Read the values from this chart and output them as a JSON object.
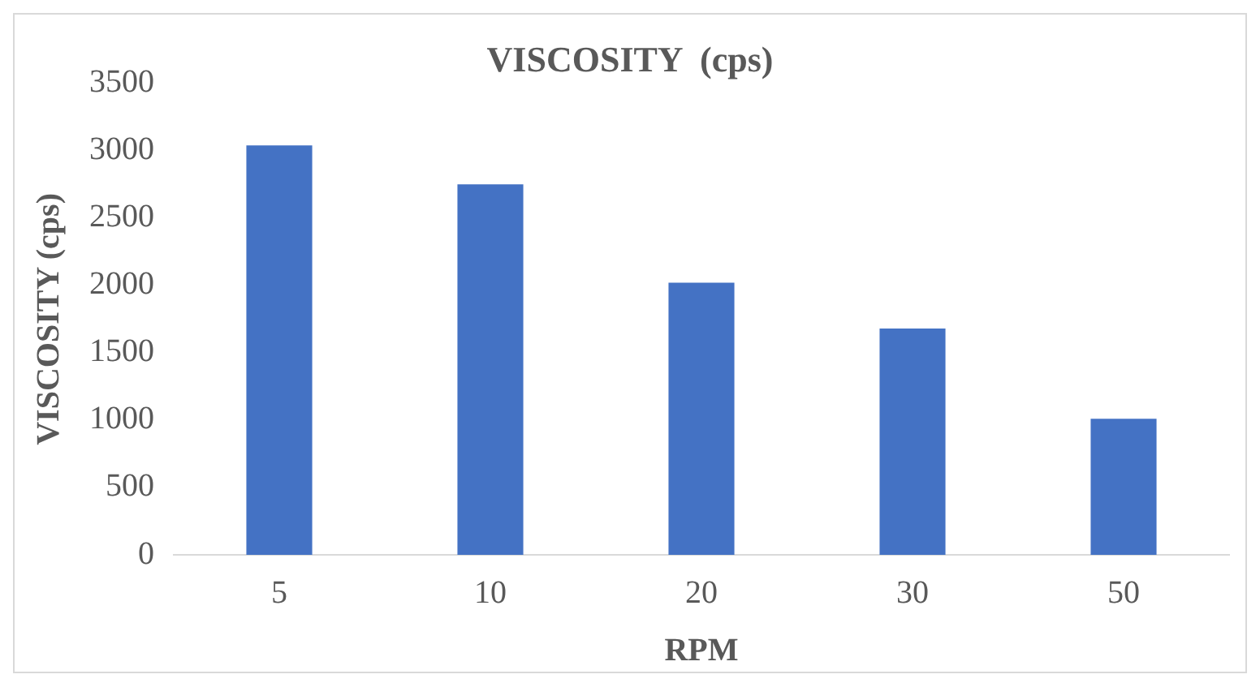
{
  "chart_data": {
    "type": "bar",
    "title": "VISCOSITY  (cps)",
    "xlabel": "RPM",
    "ylabel": "VISCOSITY (cps)",
    "categories": [
      "5",
      "10",
      "20",
      "30",
      "50"
    ],
    "values": [
      3040,
      2750,
      2020,
      1680,
      1010
    ],
    "color": "#4472c4",
    "ylim": [
      0,
      3500
    ],
    "yticks": [
      0,
      500,
      1000,
      1500,
      2000,
      2500,
      3000,
      3500
    ],
    "grid": false,
    "legend": false
  }
}
